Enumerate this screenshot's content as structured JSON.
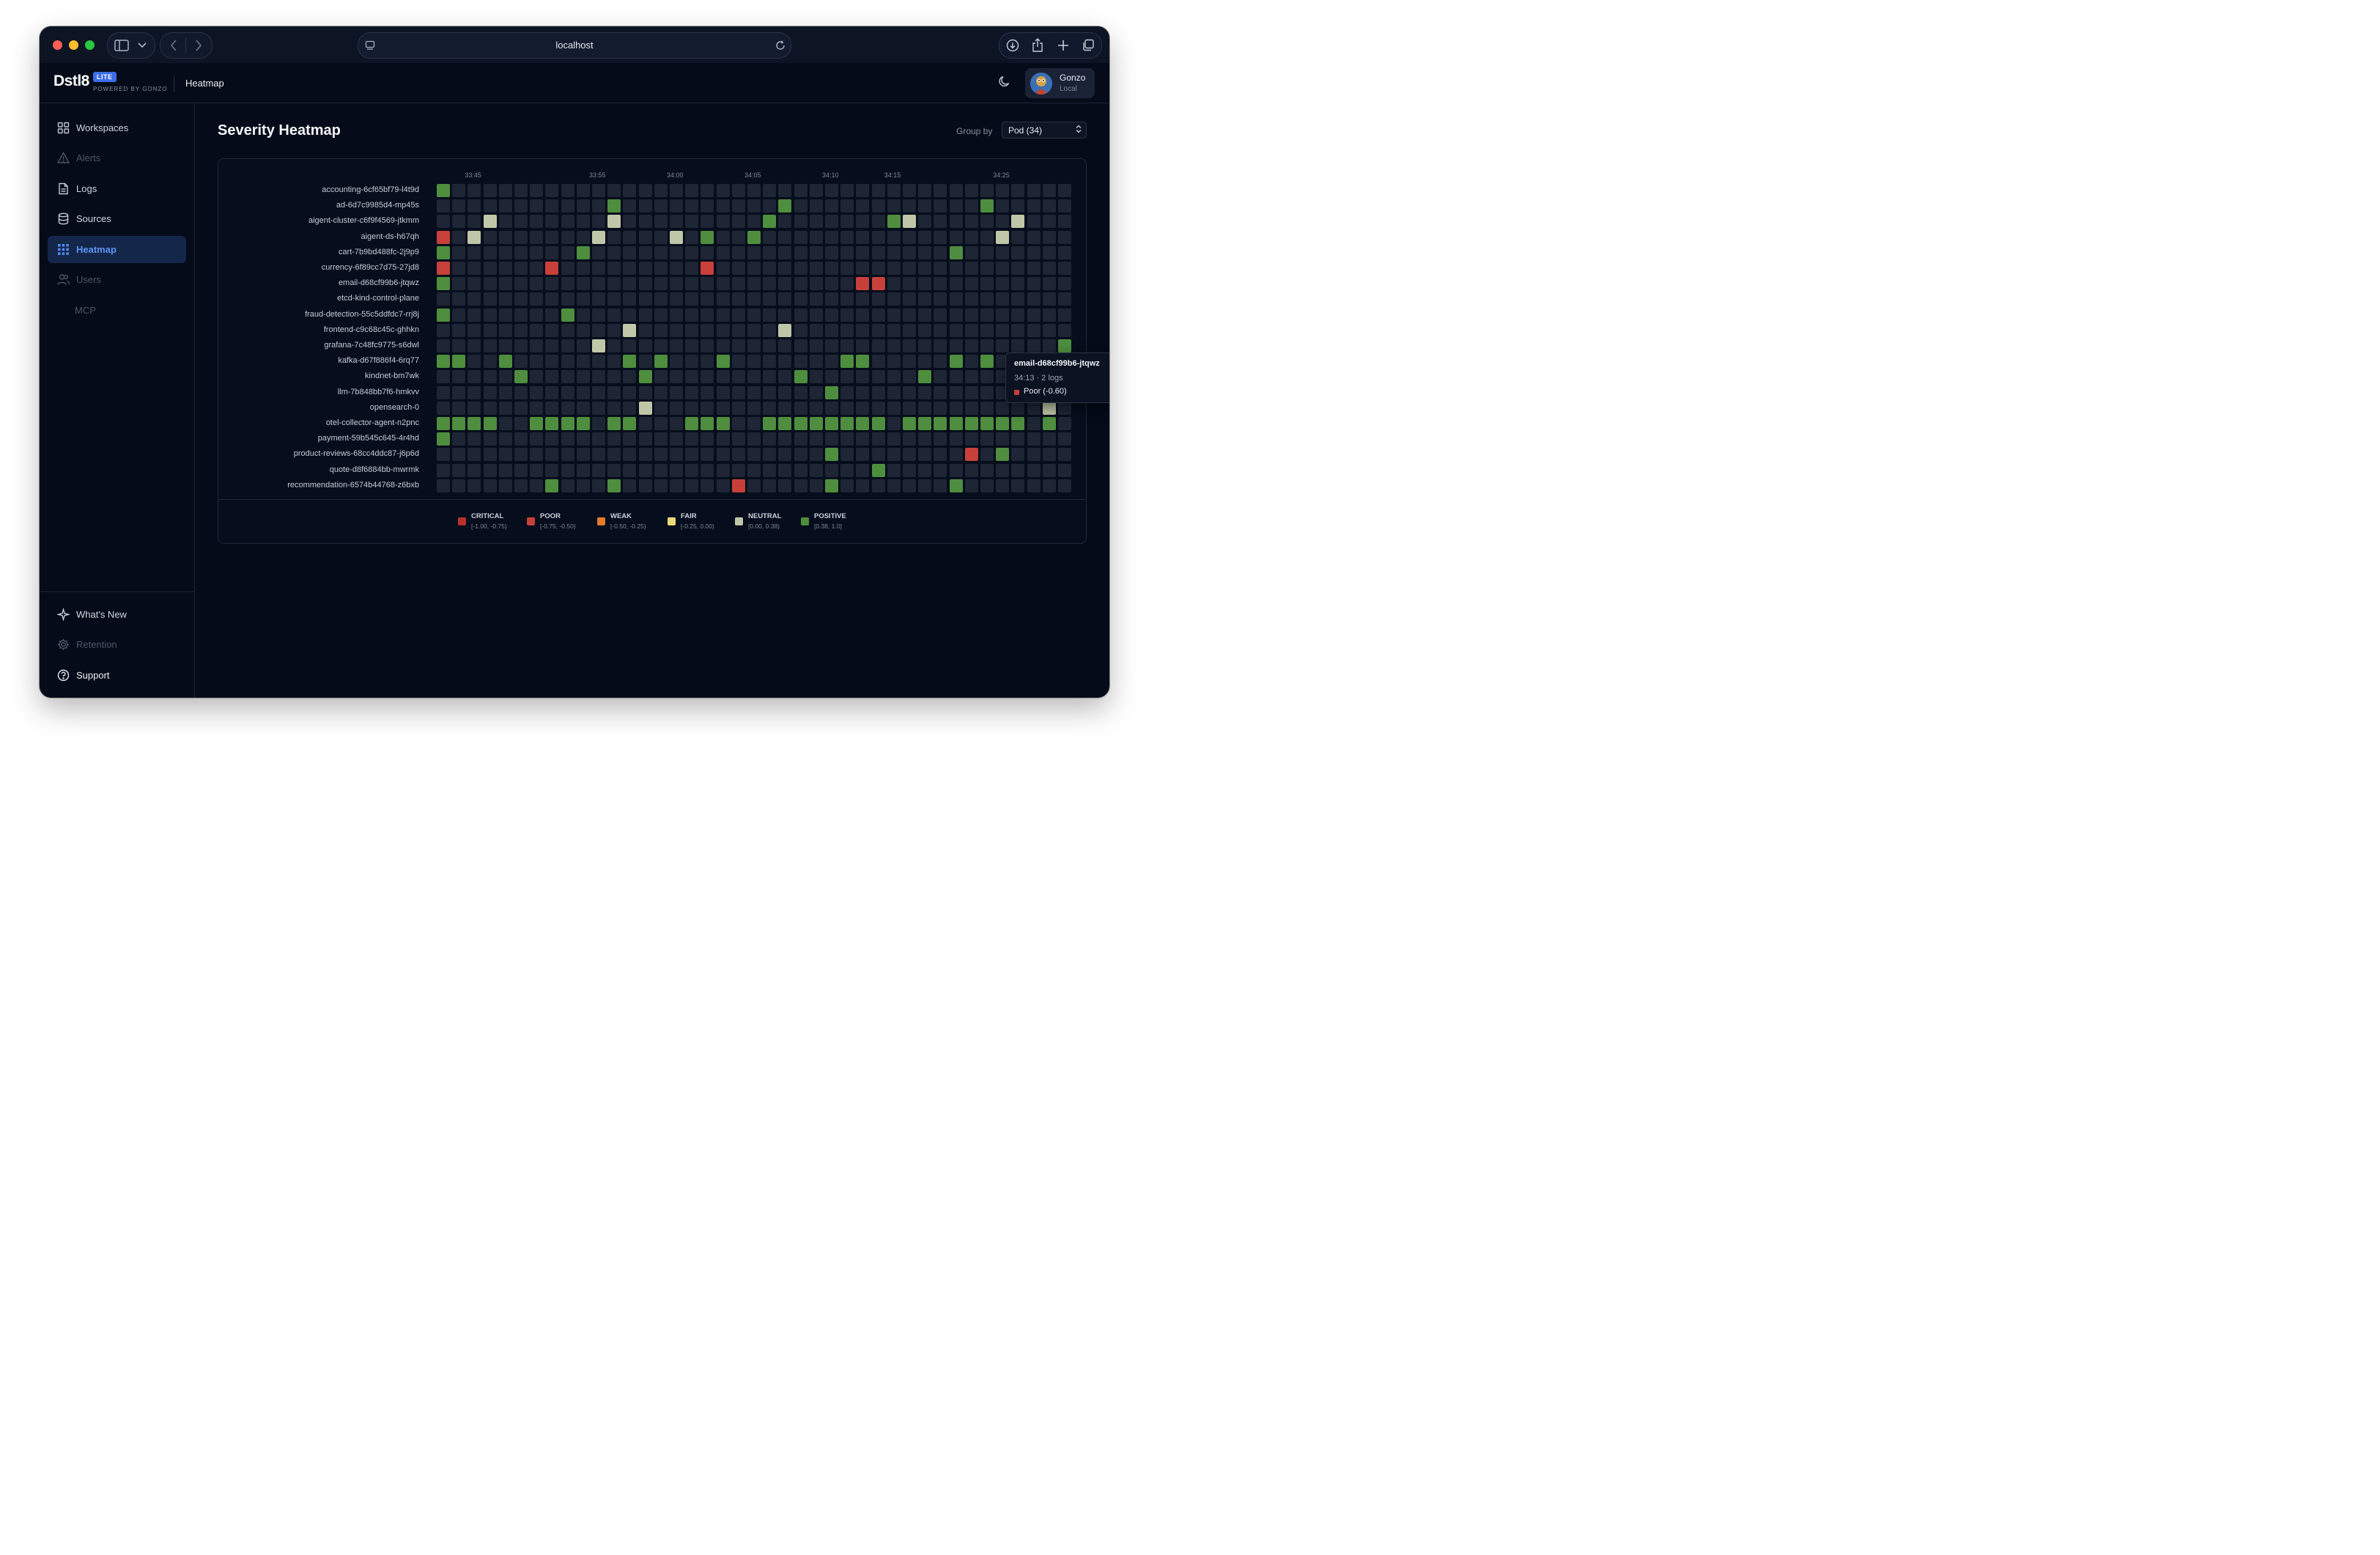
{
  "browser": {
    "url": "localhost"
  },
  "header": {
    "logo": "Dstl8",
    "badge": "LITE",
    "powered_by": "POWERED BY GONZO",
    "title": "Heatmap",
    "user": {
      "name": "Gonzo",
      "subtitle": "Local"
    }
  },
  "sidebar": {
    "items": [
      {
        "label": "Workspaces",
        "icon": "grid-icon",
        "state": "normal"
      },
      {
        "label": "Alerts",
        "icon": "warning-icon",
        "state": "disabled"
      },
      {
        "label": "Logs",
        "icon": "document-icon",
        "state": "normal"
      },
      {
        "label": "Sources",
        "icon": "database-icon",
        "state": "normal"
      },
      {
        "label": "Heatmap",
        "icon": "heatmap-grid-icon",
        "state": "active"
      },
      {
        "label": "Users",
        "icon": "users-icon",
        "state": "disabled"
      },
      {
        "label": "MCP",
        "icon": "",
        "state": "disabled"
      }
    ],
    "bottom": [
      {
        "label": "What's New",
        "icon": "sparkle-icon",
        "state": "normal"
      },
      {
        "label": "Retention",
        "icon": "gear-icon",
        "state": "disabled"
      },
      {
        "label": "Support",
        "icon": "help-circle-icon",
        "state": "normal"
      }
    ]
  },
  "main": {
    "title": "Severity Heatmap",
    "group_by_label": "Group by",
    "group_by_value": "Pod (34)"
  },
  "chart_data": {
    "type": "heatmap",
    "x_tick_labels": [
      "33:45",
      "33:55",
      "34:00",
      "34:05",
      "34:10",
      "34:15",
      "34:25"
    ],
    "columns": 41,
    "colors": {
      "empty": "#1e2636",
      "critical": "#b8302c",
      "poor": "#c8403a",
      "weak": "#e47a2c",
      "fair": "#ead97a",
      "neutral": "#bfc7a8",
      "positive": "#4e8e3e"
    },
    "rows": [
      {
        "label": "accounting-6cf65bf79-l4t9d",
        "cells": [
          [
            0,
            "positive"
          ]
        ]
      },
      {
        "label": "ad-6d7c9985d4-mp45s",
        "cells": [
          [
            11,
            "positive"
          ],
          [
            22,
            "positive"
          ],
          [
            35,
            "positive"
          ]
        ]
      },
      {
        "label": "aigent-cluster-c6f9f4569-jtkmm",
        "cells": [
          [
            3,
            "neutral"
          ],
          [
            11,
            "neutral"
          ],
          [
            21,
            "positive"
          ],
          [
            29,
            "positive"
          ],
          [
            30,
            "neutral"
          ],
          [
            37,
            "neutral"
          ]
        ]
      },
      {
        "label": "aigent-ds-h67qh",
        "cells": [
          [
            0,
            "poor"
          ],
          [
            2,
            "neutral"
          ],
          [
            10,
            "neutral"
          ],
          [
            15,
            "neutral"
          ],
          [
            17,
            "positive"
          ],
          [
            20,
            "positive"
          ],
          [
            36,
            "neutral"
          ]
        ]
      },
      {
        "label": "cart-7b9bd488fc-2j9p9",
        "cells": [
          [
            0,
            "positive"
          ],
          [
            9,
            "positive"
          ],
          [
            33,
            "positive"
          ]
        ]
      },
      {
        "label": "currency-6f89cc7d75-27jd8",
        "cells": [
          [
            0,
            "poor"
          ],
          [
            7,
            "poor"
          ],
          [
            17,
            "poor"
          ]
        ]
      },
      {
        "label": "email-d68cf99b6-jtqwz",
        "cells": [
          [
            0,
            "positive"
          ],
          [
            27,
            "poor"
          ],
          [
            28,
            "poor"
          ]
        ]
      },
      {
        "label": "etcd-kind-control-plane",
        "cells": []
      },
      {
        "label": "fraud-detection-55c5ddfdc7-rrj8j",
        "cells": [
          [
            0,
            "positive"
          ],
          [
            8,
            "positive"
          ]
        ]
      },
      {
        "label": "frontend-c9c68c45c-ghhkn",
        "cells": [
          [
            12,
            "neutral"
          ],
          [
            22,
            "neutral"
          ]
        ]
      },
      {
        "label": "grafana-7c48fc9775-s6dwl",
        "cells": [
          [
            10,
            "neutral"
          ],
          [
            40,
            "positive"
          ]
        ]
      },
      {
        "label": "kafka-d67f886f4-6rq77",
        "cells": [
          [
            0,
            "positive"
          ],
          [
            1,
            "positive"
          ],
          [
            4,
            "positive"
          ],
          [
            12,
            "positive"
          ],
          [
            14,
            "positive"
          ],
          [
            18,
            "positive"
          ],
          [
            26,
            "positive"
          ],
          [
            27,
            "positive"
          ],
          [
            33,
            "positive"
          ],
          [
            35,
            "positive"
          ],
          [
            38,
            "positive"
          ]
        ]
      },
      {
        "label": "kindnet-bm7wk",
        "cells": [
          [
            5,
            "positive"
          ],
          [
            13,
            "positive"
          ],
          [
            23,
            "positive"
          ],
          [
            31,
            "positive"
          ],
          [
            39,
            "positive"
          ]
        ]
      },
      {
        "label": "llm-7b848bb7f6-hmkvv",
        "cells": [
          [
            25,
            "positive"
          ]
        ]
      },
      {
        "label": "opensearch-0",
        "cells": [
          [
            13,
            "neutral"
          ],
          [
            39,
            "neutral"
          ]
        ]
      },
      {
        "label": "otel-collector-agent-n2pnc",
        "cells": [
          [
            0,
            "positive"
          ],
          [
            1,
            "positive"
          ],
          [
            2,
            "positive"
          ],
          [
            3,
            "positive"
          ],
          [
            6,
            "positive"
          ],
          [
            7,
            "positive"
          ],
          [
            8,
            "positive"
          ],
          [
            9,
            "positive"
          ],
          [
            11,
            "positive"
          ],
          [
            12,
            "positive"
          ],
          [
            16,
            "positive"
          ],
          [
            17,
            "positive"
          ],
          [
            18,
            "positive"
          ],
          [
            21,
            "positive"
          ],
          [
            22,
            "positive"
          ],
          [
            23,
            "positive"
          ],
          [
            24,
            "positive"
          ],
          [
            25,
            "positive"
          ],
          [
            26,
            "positive"
          ],
          [
            27,
            "positive"
          ],
          [
            28,
            "positive"
          ],
          [
            30,
            "positive"
          ],
          [
            31,
            "positive"
          ],
          [
            32,
            "positive"
          ],
          [
            33,
            "positive"
          ],
          [
            34,
            "positive"
          ],
          [
            35,
            "positive"
          ],
          [
            36,
            "positive"
          ],
          [
            37,
            "positive"
          ],
          [
            39,
            "positive"
          ]
        ]
      },
      {
        "label": "payment-59b545c645-4r4hd",
        "cells": [
          [
            0,
            "positive"
          ]
        ]
      },
      {
        "label": "product-reviews-68cc4ddc87-j6p6d",
        "cells": [
          [
            25,
            "positive"
          ],
          [
            34,
            "poor"
          ],
          [
            36,
            "positive"
          ]
        ]
      },
      {
        "label": "quote-d8f6884bb-mwrmk",
        "cells": [
          [
            28,
            "positive"
          ]
        ]
      },
      {
        "label": "recommendation-6574b44768-z6bxb",
        "cells": [
          [
            7,
            "positive"
          ],
          [
            11,
            "positive"
          ],
          [
            19,
            "poor"
          ],
          [
            25,
            "positive"
          ],
          [
            33,
            "positive"
          ]
        ]
      }
    ],
    "legend": [
      {
        "label": "CRITICAL",
        "range": "[-1.00, -0.75)",
        "key": "critical"
      },
      {
        "label": "POOR",
        "range": "[-0.75, -0.50)",
        "key": "poor"
      },
      {
        "label": "WEAK",
        "range": "[-0.50, -0.25)",
        "key": "weak"
      },
      {
        "label": "FAIR",
        "range": "[-0.25, 0.00)",
        "key": "fair"
      },
      {
        "label": "NEUTRAL",
        "range": "[0.00, 0.38)",
        "key": "neutral"
      },
      {
        "label": "POSITIVE",
        "range": "[0.38, 1.0]",
        "key": "positive"
      }
    ],
    "tooltip": {
      "title": "email-d68cf99b6-jtqwz",
      "subtitle": "34:13 · 2 logs",
      "severity": "Poor (-0.60)"
    }
  }
}
